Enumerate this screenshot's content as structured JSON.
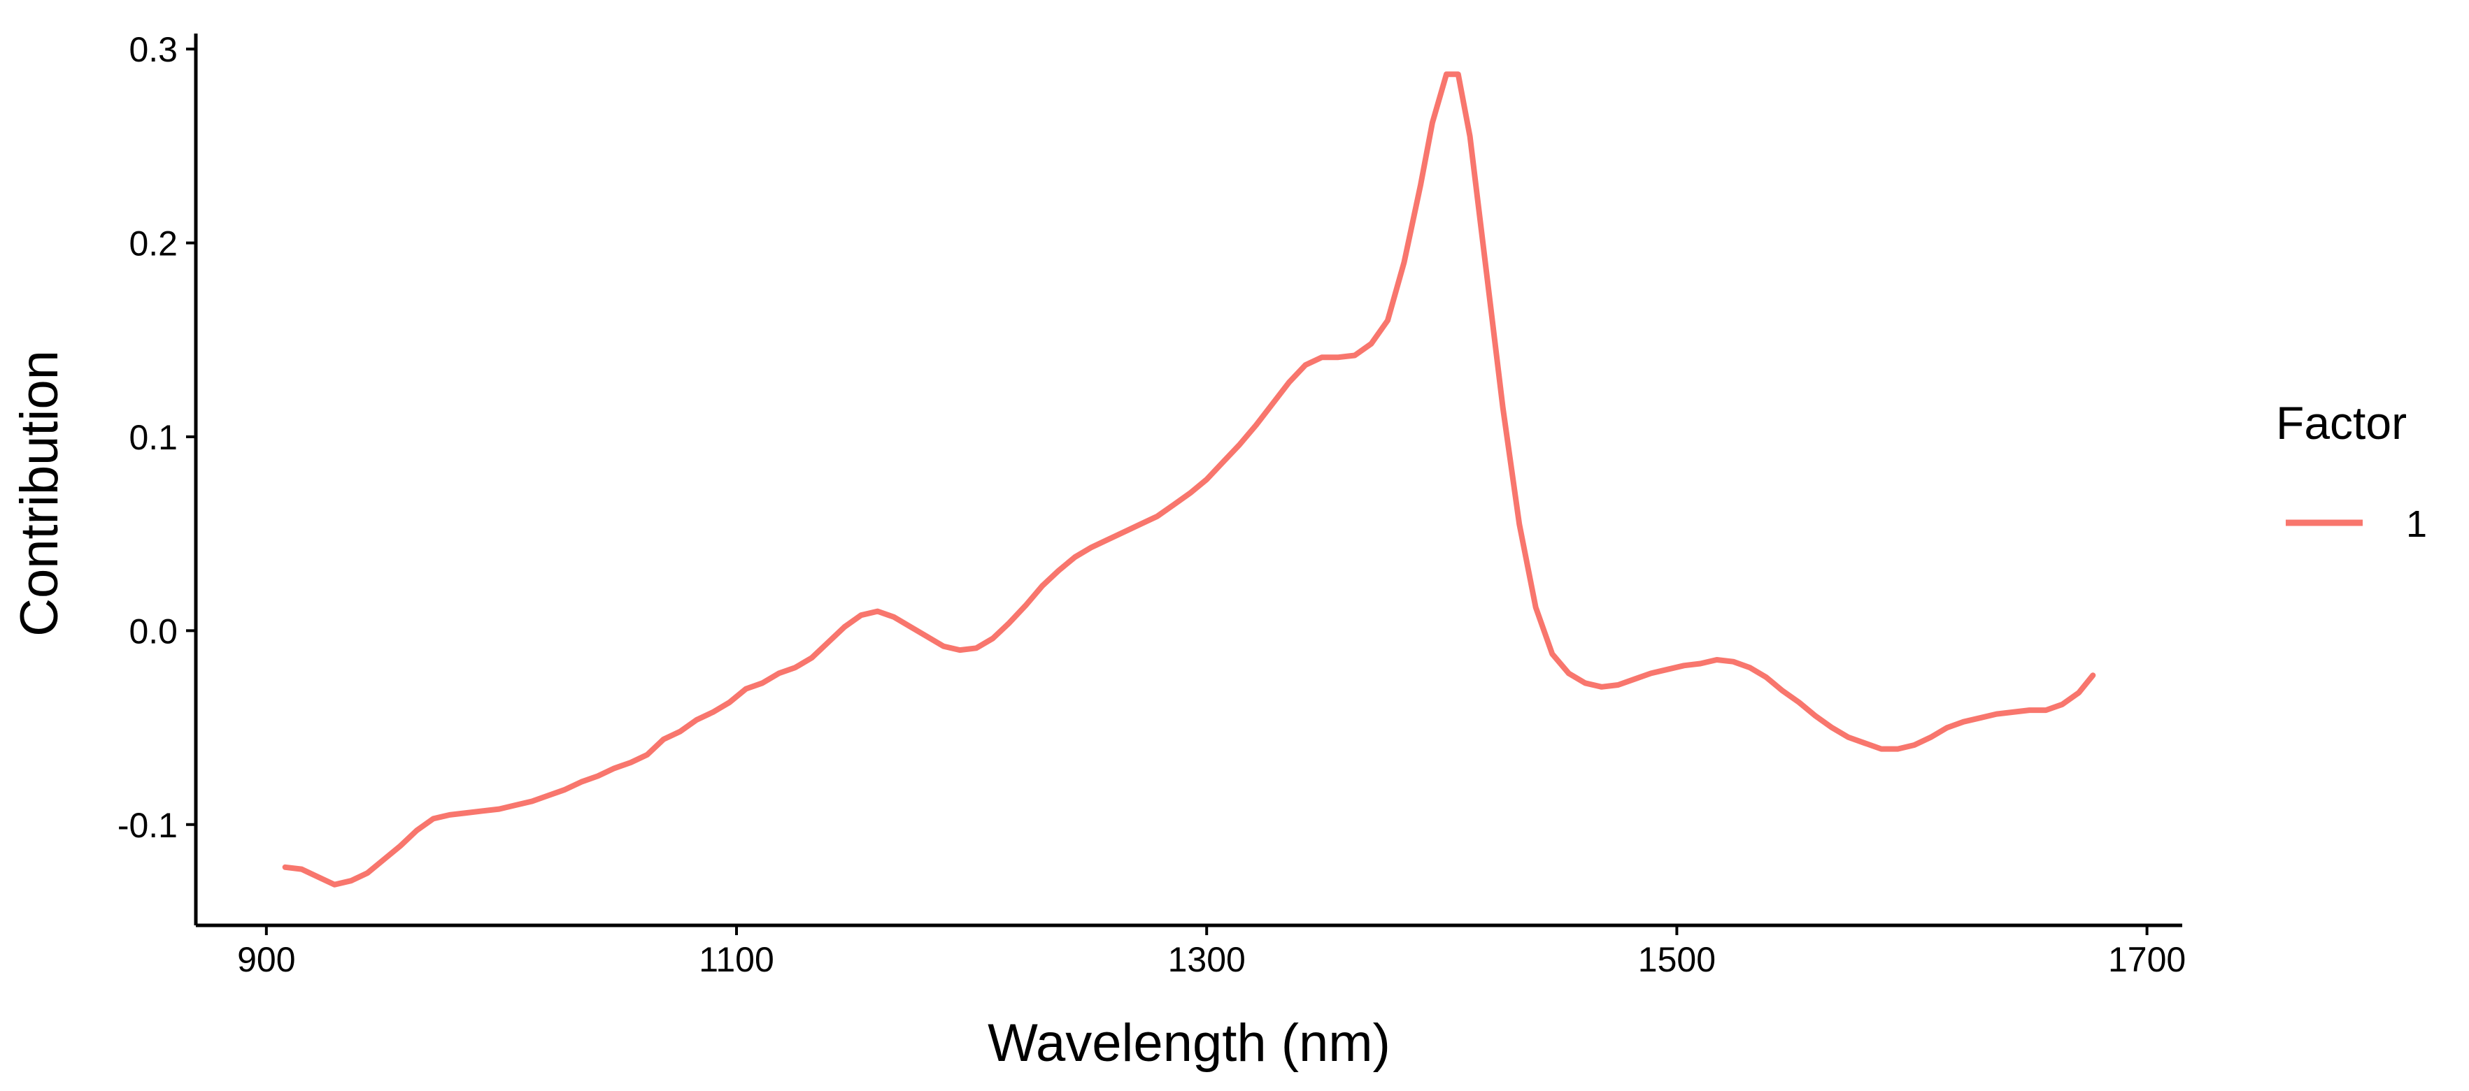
{
  "chart_data": {
    "type": "line",
    "title": "",
    "xlabel": "Wavelength (nm)",
    "ylabel": "Contribution",
    "xlim": [
      870,
      1715
    ],
    "ylim": [
      -0.152,
      0.308
    ],
    "x_ticks": [
      900,
      1100,
      1300,
      1500,
      1700
    ],
    "x_tick_labels": [
      "900",
      "1100",
      "1300",
      "1500",
      "1700"
    ],
    "y_ticks": [
      -0.1,
      0.0,
      0.1,
      0.2,
      0.3
    ],
    "y_tick_labels": [
      "-0.1",
      "0.0",
      "0.1",
      "0.2",
      "0.3"
    ],
    "grid": false,
    "legend": {
      "title": "Factor",
      "position": "right",
      "entries": [
        {
          "label": "1",
          "color": "#F8766D"
        }
      ]
    },
    "series": [
      {
        "name": "1",
        "color": "#F8766D",
        "x": [
          908,
          915,
          922,
          929,
          936,
          943,
          950,
          957,
          964,
          971,
          978,
          985,
          992,
          999,
          1006,
          1013,
          1020,
          1027,
          1034,
          1041,
          1048,
          1055,
          1062,
          1069,
          1076,
          1083,
          1090,
          1097,
          1104,
          1111,
          1118,
          1125,
          1132,
          1139,
          1146,
          1153,
          1160,
          1167,
          1174,
          1181,
          1188,
          1195,
          1202,
          1209,
          1216,
          1223,
          1230,
          1237,
          1244,
          1251,
          1258,
          1265,
          1272,
          1279,
          1286,
          1293,
          1300,
          1307,
          1314,
          1321,
          1328,
          1335,
          1342,
          1349,
          1356,
          1363,
          1370,
          1377,
          1384,
          1391,
          1396,
          1402,
          1407,
          1412,
          1419,
          1426,
          1433,
          1440,
          1447,
          1454,
          1461,
          1468,
          1475,
          1482,
          1489,
          1496,
          1503,
          1510,
          1517,
          1524,
          1531,
          1538,
          1545,
          1552,
          1559,
          1566,
          1573,
          1580,
          1587,
          1594,
          1601,
          1608,
          1615,
          1622,
          1629,
          1636,
          1643,
          1650,
          1657,
          1664,
          1671,
          1677
        ],
        "y": [
          -0.122,
          -0.123,
          -0.127,
          -0.131,
          -0.129,
          -0.125,
          -0.118,
          -0.111,
          -0.103,
          -0.097,
          -0.095,
          -0.094,
          -0.093,
          -0.092,
          -0.09,
          -0.088,
          -0.085,
          -0.082,
          -0.078,
          -0.075,
          -0.071,
          -0.068,
          -0.064,
          -0.056,
          -0.052,
          -0.046,
          -0.042,
          -0.037,
          -0.03,
          -0.027,
          -0.022,
          -0.019,
          -0.014,
          -0.006,
          0.002,
          0.008,
          0.01,
          0.007,
          0.002,
          -0.003,
          -0.008,
          -0.01,
          -0.009,
          -0.004,
          0.004,
          0.013,
          0.023,
          0.031,
          0.038,
          0.043,
          0.047,
          0.051,
          0.055,
          0.059,
          0.065,
          0.071,
          0.078,
          0.087,
          0.096,
          0.106,
          0.117,
          0.128,
          0.137,
          0.141,
          0.141,
          0.142,
          0.148,
          0.16,
          0.19,
          0.23,
          0.262,
          0.287,
          0.287,
          0.255,
          0.185,
          0.115,
          0.055,
          0.012,
          -0.012,
          -0.022,
          -0.027,
          -0.029,
          -0.028,
          -0.025,
          -0.022,
          -0.02,
          -0.018,
          -0.017,
          -0.015,
          -0.016,
          -0.019,
          -0.024,
          -0.031,
          -0.037,
          -0.044,
          -0.05,
          -0.055,
          -0.058,
          -0.061,
          -0.061,
          -0.059,
          -0.055,
          -0.05,
          -0.047,
          -0.045,
          -0.043,
          -0.042,
          -0.041,
          -0.041,
          -0.038,
          -0.032,
          -0.023
        ]
      }
    ]
  }
}
